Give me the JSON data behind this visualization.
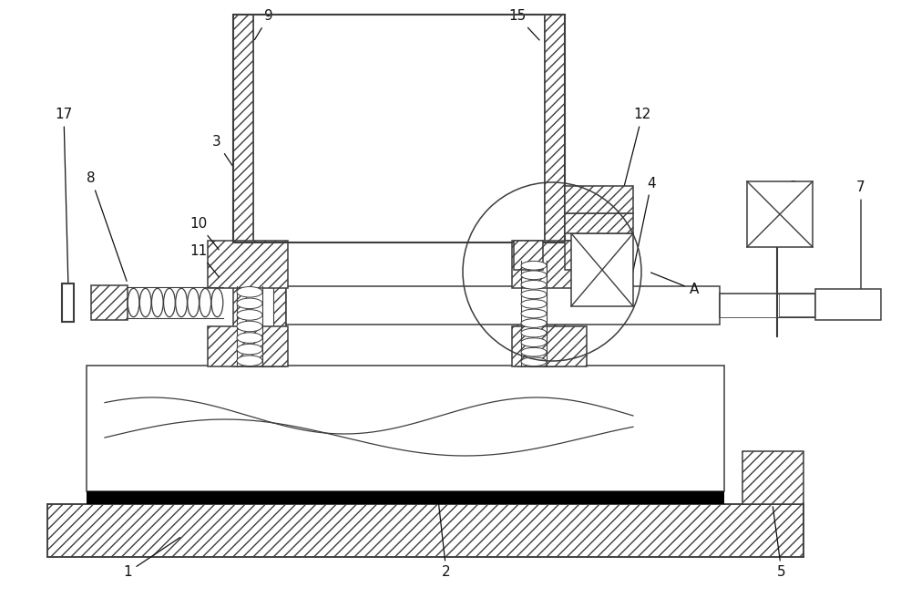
{
  "bg_color": "#ffffff",
  "line_color": "#3d3d3d",
  "fig_width": 10.0,
  "fig_height": 6.56,
  "dpi": 100,
  "lw": 1.1,
  "lw2": 1.5,
  "fs": 11
}
